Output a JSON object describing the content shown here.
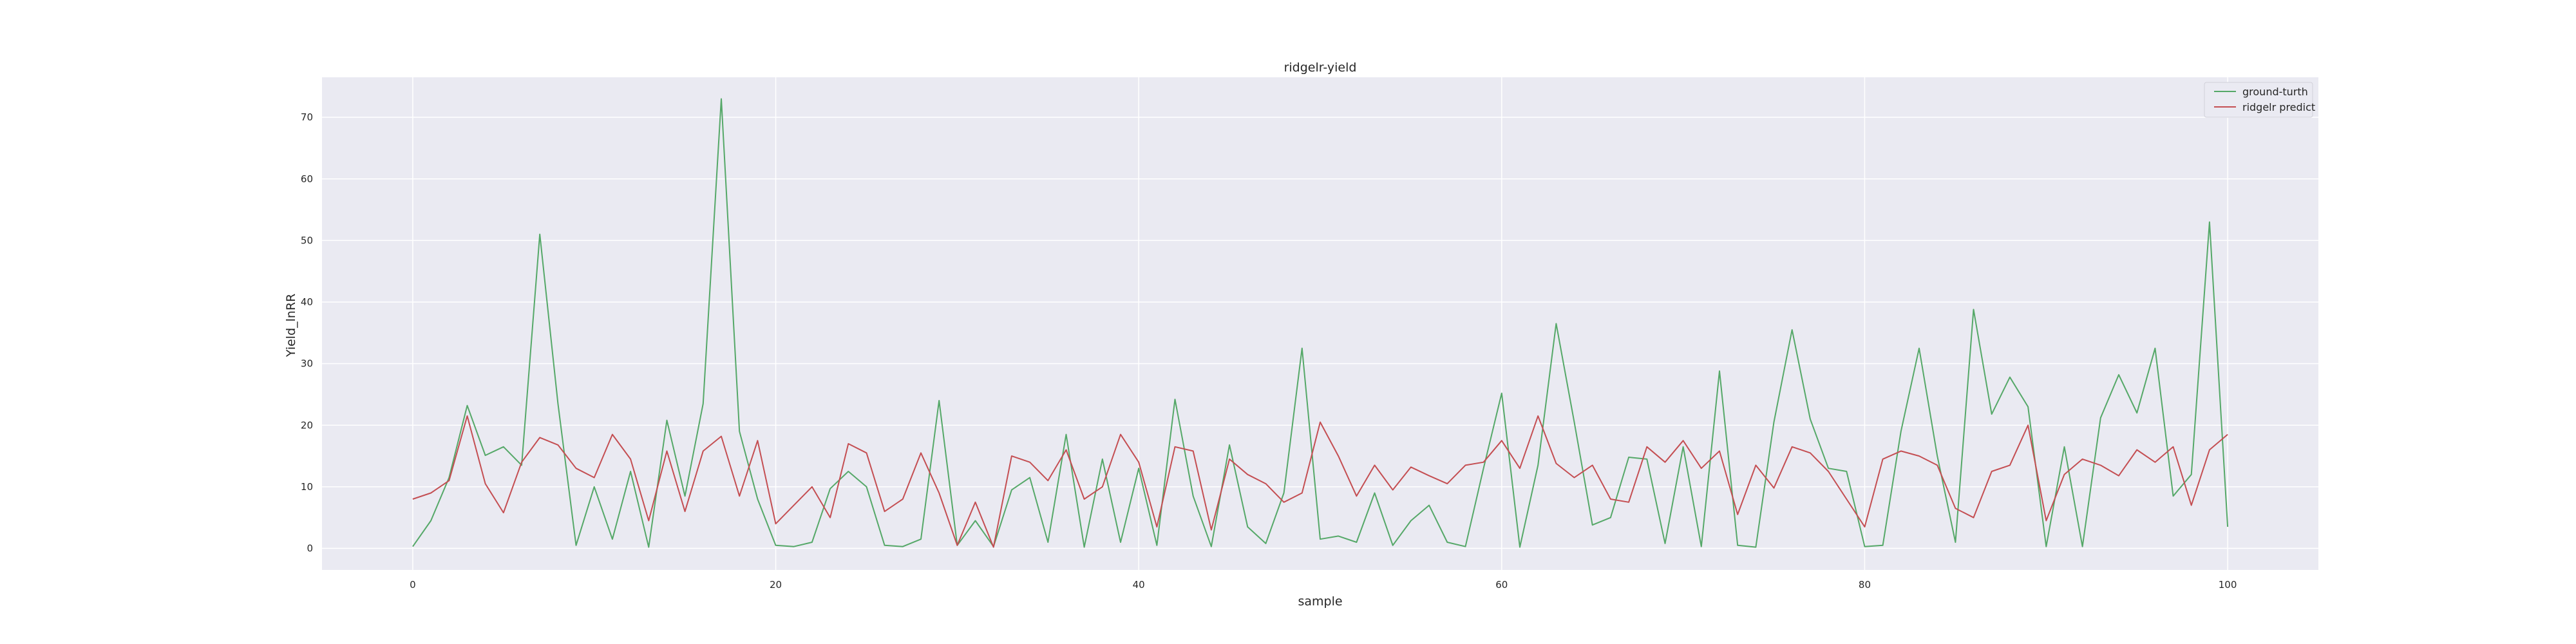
{
  "chart_data": {
    "type": "line",
    "title": "ridgelr-yield",
    "xlabel": "sample",
    "ylabel": "Yield_lnRR",
    "xlim": [
      -5,
      105
    ],
    "ylim": [
      -3.5,
      76.5
    ],
    "x_ticks": [
      0,
      20,
      40,
      60,
      80,
      100
    ],
    "y_ticks": [
      0,
      10,
      20,
      30,
      40,
      50,
      60,
      70
    ],
    "grid": true,
    "legend_position": "top-right",
    "x": [
      0,
      1,
      2,
      3,
      4,
      5,
      6,
      7,
      8,
      9,
      10,
      11,
      12,
      13,
      14,
      15,
      16,
      17,
      18,
      19,
      20,
      21,
      22,
      23,
      24,
      25,
      26,
      27,
      28,
      29,
      30,
      31,
      32,
      33,
      34,
      35,
      36,
      37,
      38,
      39,
      40,
      41,
      42,
      43,
      44,
      45,
      46,
      47,
      48,
      49,
      50,
      51,
      52,
      53,
      54,
      55,
      56,
      57,
      58,
      59,
      60,
      61,
      62,
      63,
      64,
      65,
      66,
      67,
      68,
      69,
      70,
      71,
      72,
      73,
      74,
      75,
      76,
      77,
      78,
      79,
      80,
      81,
      82,
      83,
      84,
      85,
      86,
      87,
      88,
      89,
      90,
      91,
      92,
      93,
      94,
      95,
      96,
      97,
      98,
      99,
      100
    ],
    "series": [
      {
        "name": "ground-turth",
        "color": "#55a868",
        "values": [
          0.3,
          4.5,
          11.5,
          23.2,
          15.1,
          16.5,
          13.5,
          51.0,
          23.5,
          0.5,
          10.0,
          1.5,
          12.5,
          0.2,
          20.8,
          8.5,
          23.5,
          73.0,
          19.0,
          8.0,
          0.5,
          0.3,
          1.0,
          9.7,
          12.5,
          10.0,
          0.5,
          0.3,
          1.5,
          24.0,
          0.5,
          4.5,
          0.3,
          9.5,
          11.5,
          1.0,
          18.5,
          0.2,
          14.5,
          1.0,
          13.0,
          0.5,
          24.2,
          8.5,
          0.3,
          16.8,
          3.5,
          0.8,
          9.0,
          32.5,
          1.5,
          2.0,
          1.0,
          9.0,
          0.5,
          4.5,
          7.0,
          1.0,
          0.3,
          13.0,
          25.2,
          0.2,
          13.5,
          36.5,
          20.5,
          3.8,
          5.0,
          14.8,
          14.5,
          0.8,
          16.5,
          0.3,
          28.8,
          0.5,
          0.2,
          20.5,
          35.5,
          21.0,
          13.0,
          12.5,
          0.3,
          0.5,
          19.0,
          32.5,
          15.0,
          1.0,
          38.8,
          21.8,
          27.8,
          23.0,
          0.3,
          16.5,
          0.3,
          21.2,
          28.2,
          22.0,
          32.5,
          8.5,
          12.0,
          53.0,
          3.5
        ]
      },
      {
        "name": "ridgelr predict",
        "color": "#c44e52",
        "values": [
          8.0,
          9.0,
          11.0,
          21.5,
          10.5,
          5.8,
          14.0,
          18.0,
          16.8,
          13.0,
          11.5,
          18.5,
          14.5,
          4.5,
          15.8,
          6.0,
          15.8,
          18.2,
          8.5,
          17.5,
          4.0,
          7.0,
          10.0,
          5.0,
          17.0,
          15.5,
          6.0,
          8.0,
          15.5,
          9.0,
          0.5,
          7.5,
          0.2,
          15.0,
          14.0,
          11.0,
          16.0,
          8.0,
          10.0,
          18.5,
          14.0,
          3.5,
          16.5,
          15.8,
          3.0,
          14.5,
          12.0,
          10.5,
          7.5,
          9.0,
          20.5,
          15.0,
          8.5,
          13.5,
          9.5,
          13.2,
          11.8,
          10.5,
          13.5,
          14.0,
          17.5,
          13.0,
          21.5,
          13.8,
          11.5,
          13.5,
          8.0,
          7.5,
          16.5,
          14.0,
          17.5,
          13.0,
          15.8,
          5.5,
          13.5,
          9.8,
          16.5,
          15.5,
          12.5,
          8.0,
          3.5,
          14.5,
          15.8,
          15.0,
          13.5,
          6.5,
          5.0,
          12.5,
          13.5,
          20.0,
          4.5,
          12.0,
          14.5,
          13.5,
          11.8,
          16.0,
          14.0,
          16.5,
          7.0,
          16.0,
          18.5
        ]
      }
    ]
  }
}
